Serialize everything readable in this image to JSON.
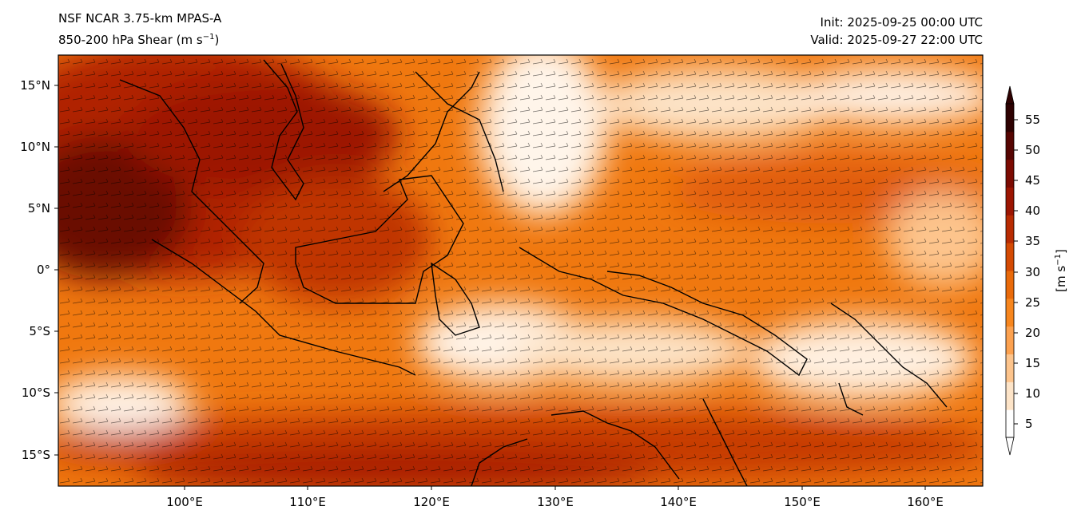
{
  "header": {
    "model_title": "NSF NCAR 3.75-km MPAS-A",
    "field_title": "850-200 hPa Shear (m s",
    "field_unit_exp": "−1",
    "field_close": ")",
    "init": "Init: 2025-09-25 00:00 UTC",
    "valid": "Valid: 2025-09-27 22:00 UTC"
  },
  "map": {
    "lat_ticks": [
      "15°N",
      "10°N",
      "5°N",
      "0°",
      "5°S",
      "10°S",
      "15°S"
    ],
    "lon_ticks": [
      "100°E",
      "110°E",
      "120°E",
      "130°E",
      "140°E",
      "150°E",
      "160°E"
    ],
    "palette": [
      "#ffffff",
      "#fde4c8",
      "#fdc48c",
      "#fca14f",
      "#f7861e",
      "#e96a0a",
      "#d44a03",
      "#b82b02",
      "#9c1502",
      "#7c0b02",
      "#560502",
      "#2e0101"
    ]
  },
  "colorbar": {
    "ticks": [
      "5",
      "10",
      "15",
      "20",
      "25",
      "30",
      "35",
      "40",
      "45",
      "50",
      "55"
    ],
    "label": "[m s",
    "label_exp": "−1",
    "label_close": "]",
    "extend": "both"
  }
}
